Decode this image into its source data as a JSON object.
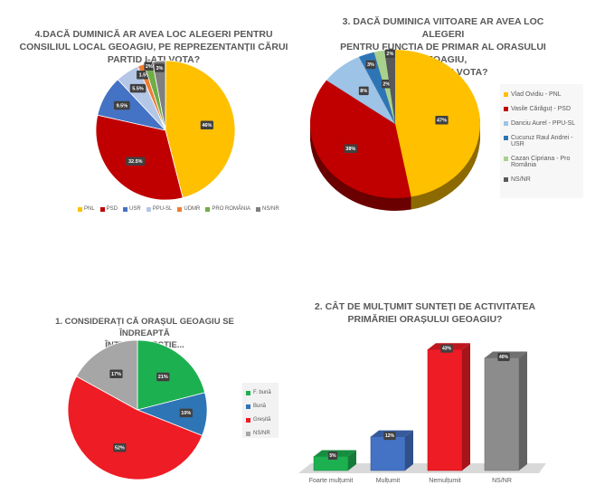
{
  "chart_data": [
    {
      "id": "q4",
      "type": "pie",
      "title": "4.DACĂ DUMINICĂ AR AVEA LOC ALEGERI PENTRU CONSILIUL LOCAL GEOAGIU, PE REPREZENTANȚII CĂRUI PARTID I-AȚI VOTA?",
      "title_lines": [
        "4.DACĂ DUMINICĂ AR AVEA LOC ALEGERI PENTRU",
        "CONSILIUL LOCAL GEOAGIU, PE REPREZENTANȚII CĂRUI",
        "PARTID I-AȚI VOTA?"
      ],
      "legend_position": "bottom",
      "slices": [
        {
          "label": "PNL",
          "value": 46,
          "display": "46%",
          "color": "#FFC000"
        },
        {
          "label": "PSD",
          "value": 32.5,
          "display": "32.5%",
          "color": "#C00000"
        },
        {
          "label": "USR",
          "value": 9.5,
          "display": "9.5%",
          "color": "#4472C4"
        },
        {
          "label": "PPU-SL",
          "value": 5.5,
          "display": "5.5%",
          "color": "#B4C7E7"
        },
        {
          "label": "UDMR",
          "value": 1.5,
          "display": "1.5%",
          "color": "#ED7D31"
        },
        {
          "label": "PRO ROMÂNIA",
          "value": 2,
          "display": "2%",
          "color": "#70AD47"
        },
        {
          "label": "NS/NR",
          "value": 3,
          "display": "3%",
          "color": "#7F7F7F"
        }
      ]
    },
    {
      "id": "q3",
      "type": "pie",
      "title": "3. DACĂ DUMINICA VIITOARE AR AVEA LOC ALEGERI PENTRU FUNCTIA DE PRIMAR AL ORASULUI GEOAGIU, PE CINE AȚI VOTA?",
      "title_lines": [
        "3. DACĂ DUMINICA VIITOARE AR AVEA LOC ALEGERI",
        "PENTRU FUNCTIA DE PRIMAR AL ORASULUI GEOAGIU,",
        "PE CINE AȚI VOTA?"
      ],
      "legend_position": "right",
      "style": "3d",
      "slices": [
        {
          "label": "Vlad Ovidiu - PNL",
          "value": 47,
          "display": "47%",
          "color": "#FFC000"
        },
        {
          "label": "Vasile Cărăguț - PSD",
          "value": 38,
          "display": "38%",
          "color": "#C00000"
        },
        {
          "label": "Danciu Aurel - PPU-SL",
          "value": 8,
          "display": "8%",
          "color": "#9DC3E6"
        },
        {
          "label": "Cucuruz Raul Andrei - USR",
          "value": 3,
          "display": "3%",
          "color": "#2E75B6"
        },
        {
          "label": "Cazan Cipriana - Pro România",
          "value": 2,
          "display": "2%",
          "color": "#A9D18E"
        },
        {
          "label": "NS/NR",
          "value": 2,
          "display": "2%",
          "color": "#595959"
        }
      ]
    },
    {
      "id": "q1",
      "type": "pie",
      "title": "1. CONSIDERAȚI CĂ ORAȘUL GEOAGIU SE ÎNDREAPTĂ ÎNTR-O DIRECȚIE...",
      "title_lines": [
        "1. CONSIDERAȚI CĂ ORAȘUL GEOAGIU SE ÎNDREAPTĂ",
        "ÎNTR-O DIRECȚIE..."
      ],
      "legend_position": "right",
      "slices": [
        {
          "label": "F. bună",
          "value": 21,
          "display": "21%",
          "color": "#1DB050"
        },
        {
          "label": "Bună",
          "value": 10,
          "display": "10%",
          "color": "#2E75B6"
        },
        {
          "label": "Greșită",
          "value": 52,
          "display": "52%",
          "color": "#EE1C25"
        },
        {
          "label": "NS/NR",
          "value": 17,
          "display": "17%",
          "color": "#A6A6A6"
        }
      ]
    },
    {
      "id": "q2",
      "type": "bar",
      "style": "3d",
      "title": "2. CÂT DE MULȚUMIT SUNTEȚI DE ACTIVITATEA PRIMĂRIEI ORAȘULUI GEOAGIU?",
      "title_lines": [
        "2. CÂT DE MULȚUMIT SUNTEȚI DE ACTIVITATEA",
        "PRIMĂRIEI ORAȘULUI GEOAGIU?"
      ],
      "categories": [
        "Foarte mulțumit",
        "Mulțumit",
        "Nemulțumit",
        "NS/NR"
      ],
      "values": [
        5,
        12,
        43,
        40
      ],
      "display": [
        "5%",
        "12%",
        "43%",
        "40%"
      ],
      "colors": [
        "#1DB050",
        "#4472C4",
        "#EE1C25",
        "#8C8C8C"
      ],
      "ylim": [
        0,
        45
      ],
      "grid": false
    }
  ]
}
